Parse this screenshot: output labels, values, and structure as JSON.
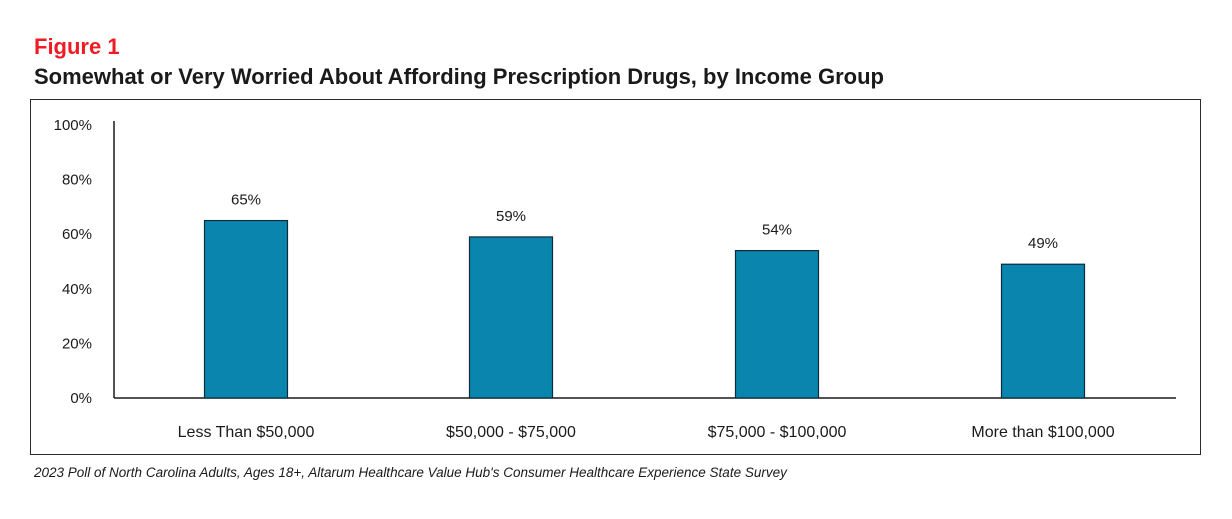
{
  "figure_label": "Figure 1",
  "chart_data": {
    "type": "bar",
    "title": "Somewhat or Very Worried About Affording Prescription Drugs, by Income Group",
    "categories": [
      "Less Than $50,000",
      "$50,000 - $75,000",
      "$75,000 - $100,000",
      "More than $100,000"
    ],
    "values": [
      65,
      59,
      54,
      49
    ],
    "data_labels": [
      "65%",
      "59%",
      "54%",
      "49%"
    ],
    "ylim": [
      0,
      100
    ],
    "y_ticks": [
      0,
      20,
      40,
      60,
      80,
      100
    ],
    "y_tick_labels": [
      "0%",
      "20%",
      "40%",
      "60%",
      "80%",
      "100%"
    ],
    "xlabel": "",
    "ylabel": "",
    "bar_color": "#0a85ad",
    "bar_edge_color": "#0d2b3a",
    "grid": false,
    "legend": "none"
  },
  "caption": "2023 Poll of North Carolina Adults, Ages 18+, Altarum Healthcare Value Hub's Consumer Healthcare Experience State Survey"
}
